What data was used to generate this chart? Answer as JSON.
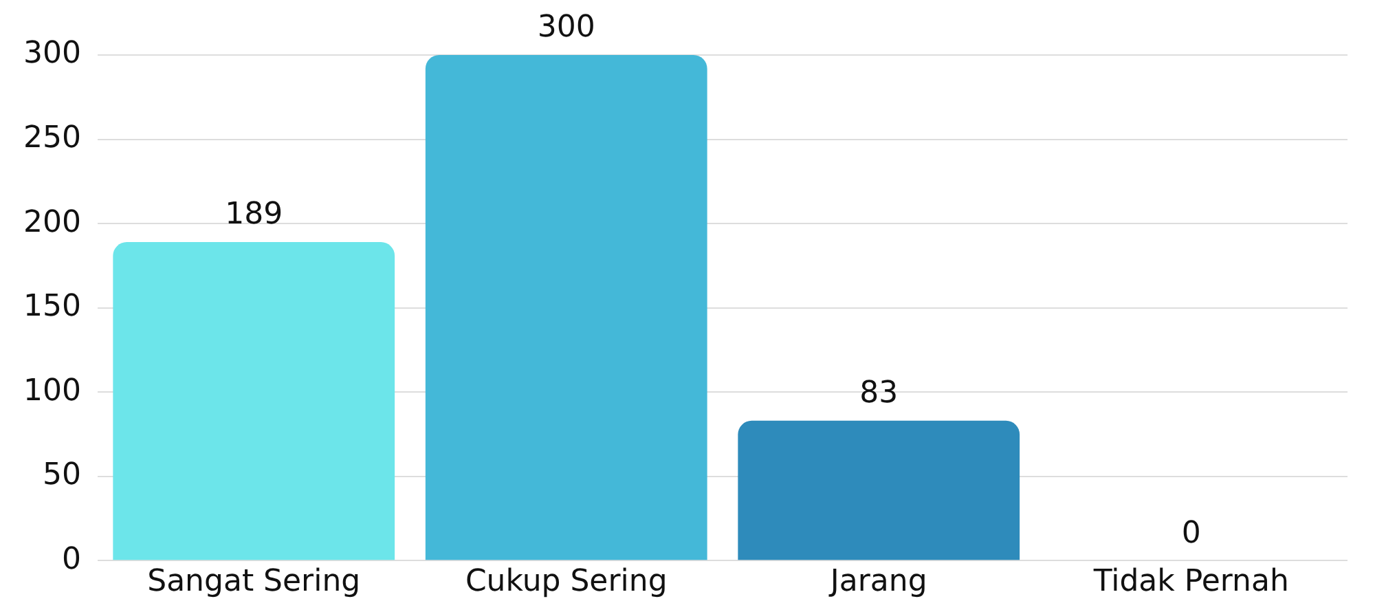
{
  "chart_data": {
    "type": "bar",
    "categories": [
      "Sangat Sering",
      "Cukup Sering",
      "Jarang",
      "Tidak Pernah"
    ],
    "values": [
      189,
      300,
      83,
      0
    ],
    "colors": [
      "#6ce5ea",
      "#44b8d8",
      "#2e8bbb",
      "#1f5f99"
    ],
    "ylim": [
      0,
      300
    ],
    "yticks": [
      0,
      50,
      100,
      150,
      200,
      250,
      300
    ],
    "grid": "y",
    "data_labels": true,
    "legend": false
  }
}
